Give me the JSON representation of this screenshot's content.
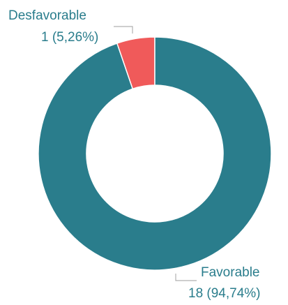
{
  "chart_data": {
    "type": "pie",
    "variant": "donut",
    "categories": [
      "Desfavorable",
      "Favorable"
    ],
    "values": [
      1,
      18
    ],
    "value_labels": [
      "1 (5,26%)",
      "18 (94,74%)"
    ],
    "colors": [
      "#f05a5a",
      "#2a7d8c"
    ],
    "label_color": "#2a7d8c",
    "leader_color": "#b0b0b0",
    "title": "",
    "legend": "none"
  }
}
